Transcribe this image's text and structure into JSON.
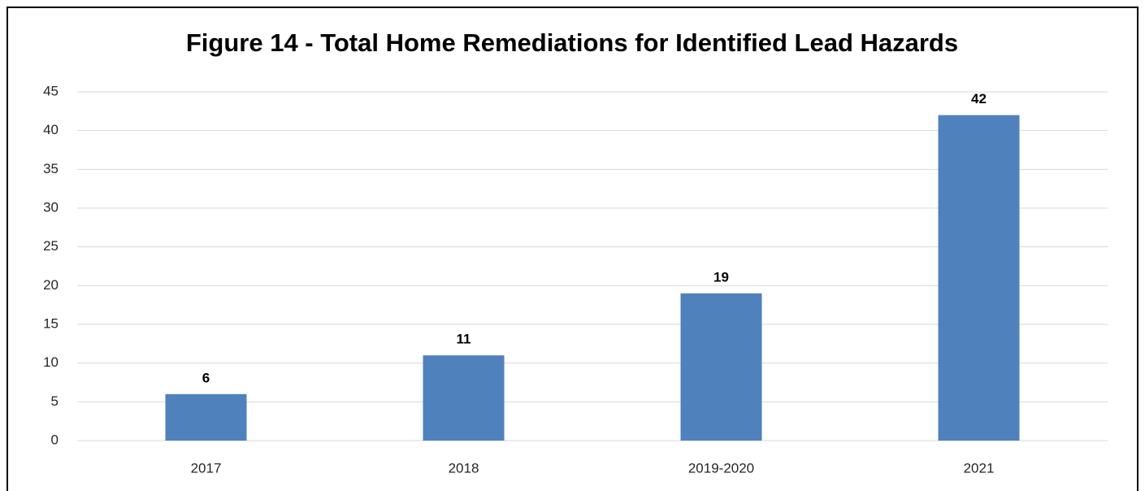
{
  "chart_data": {
    "type": "bar",
    "title": "Figure 14 - Total Home Remediations for Identified Lead Hazards",
    "categories": [
      "2017",
      "2018",
      "2019-2020",
      "2021"
    ],
    "values": [
      6,
      11,
      19,
      42
    ],
    "color": "#4f81bd",
    "ylim": [
      0,
      45
    ],
    "yticks": [
      0,
      5,
      10,
      15,
      20,
      25,
      30,
      35,
      40,
      45
    ],
    "grid": true,
    "data_labels": true
  }
}
